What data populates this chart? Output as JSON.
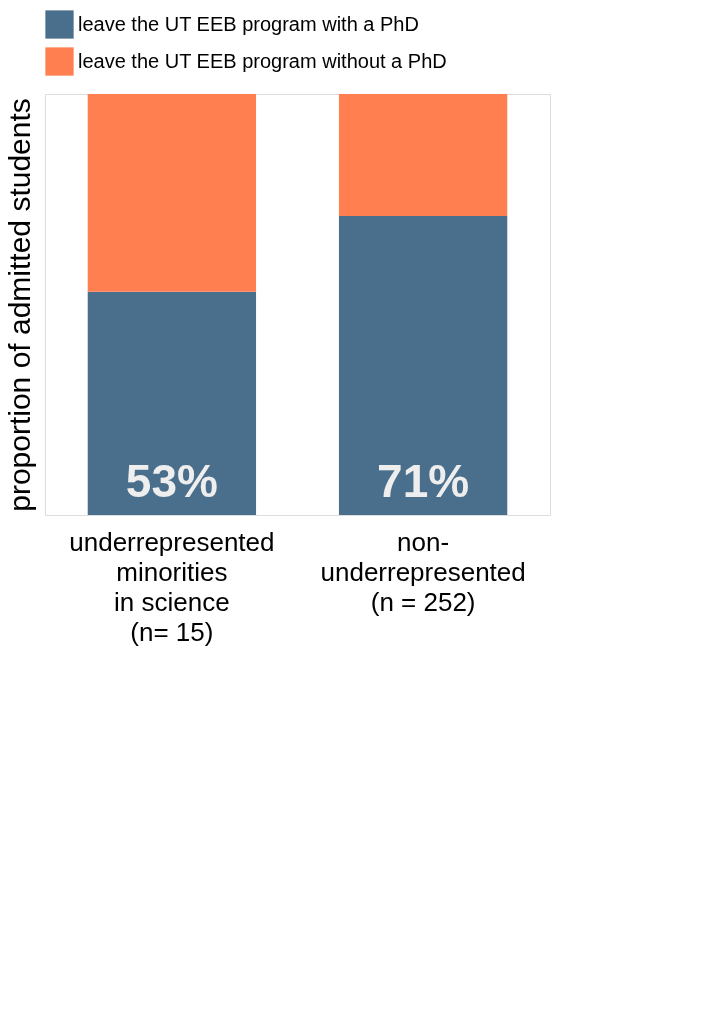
{
  "chart_data": {
    "type": "bar",
    "stacked": true,
    "ylabel": "proportion of admitted students",
    "categories": [
      "underrepresented\nminorities\nin science\n(n= 15)",
      "non-\nunderrepresented\n(n = 252)"
    ],
    "series": [
      {
        "name": "leave the UT EEB program with a PhD",
        "color": "#4a6f8c",
        "values": [
          53,
          71
        ],
        "value_labels": [
          "53%",
          "71%"
        ]
      },
      {
        "name": "leave the UT EEB program without a PhD",
        "color": "#ff7f50",
        "values": [
          47,
          29
        ]
      }
    ],
    "ylim": [
      0,
      100
    ],
    "tick_labels": "x",
    "legend": "top left"
  }
}
